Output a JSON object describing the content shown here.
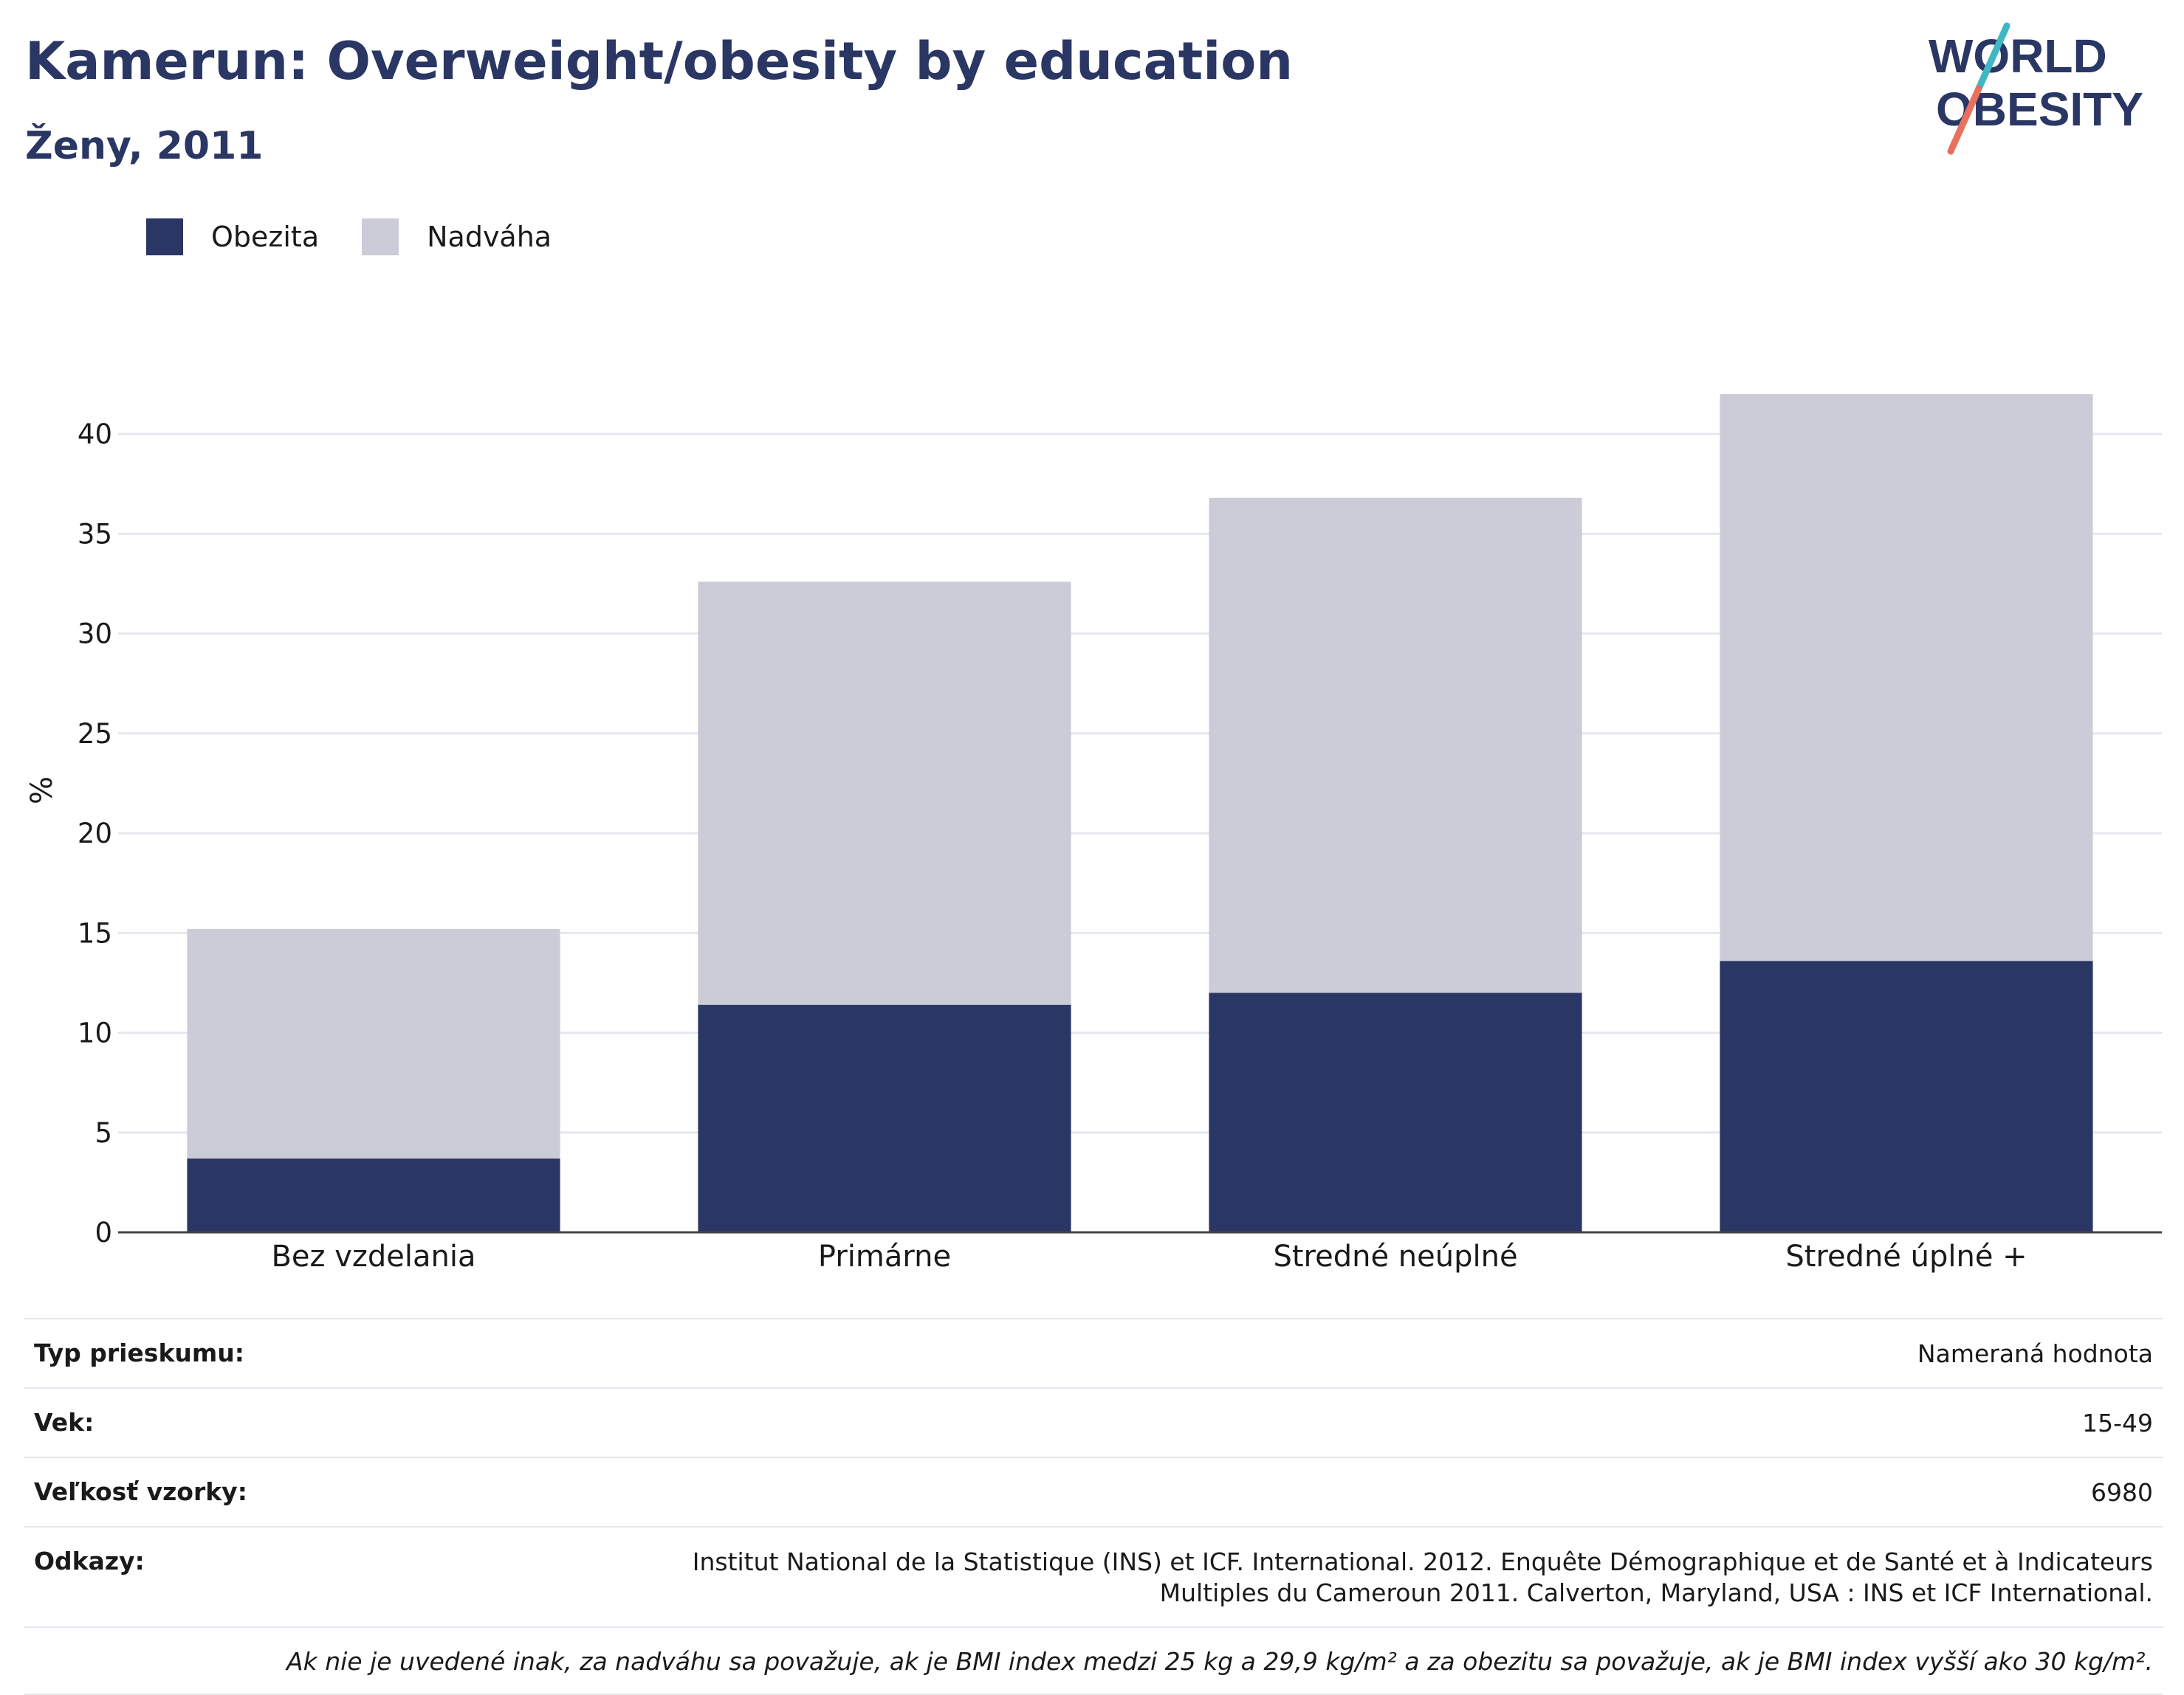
{
  "header": {
    "title": "Kamerun: Overweight/obesity by education",
    "subtitle": "Ženy, 2011"
  },
  "logo": {
    "line1": "WORLD",
    "line2": "OBESITY",
    "slash_colors": [
      "#3fb8c4",
      "#e8705f"
    ]
  },
  "legend": [
    {
      "label": "Obezita",
      "color": "#2a3663"
    },
    {
      "label": "Nadváha",
      "color": "#cbccd8"
    }
  ],
  "chart_data": {
    "type": "bar",
    "stacked": true,
    "categories": [
      "Bez vzdelania",
      "Primárne",
      "Stredné neúplné",
      "Stredné úplné +"
    ],
    "series": [
      {
        "name": "Obezita",
        "color": "#2a3663",
        "values": [
          3.7,
          11.4,
          12.0,
          13.6
        ]
      },
      {
        "name": "Nadváha",
        "color": "#cbccd8",
        "values": [
          11.5,
          21.2,
          24.8,
          28.4
        ]
      }
    ],
    "ylabel": "%",
    "ylim": [
      0,
      44
    ],
    "yticks": [
      0,
      5,
      10,
      15,
      20,
      25,
      30,
      35,
      40
    ],
    "grid": true
  },
  "info": {
    "survey_type_label": "Typ prieskumu:",
    "survey_type_value": "Nameraná hodnota",
    "age_label": "Vek:",
    "age_value": "15-49",
    "sample_label": "Veľkosť vzorky:",
    "sample_value": "6980",
    "refs_label": "Odkazy:",
    "refs_value": "Institut National de la Statistique (INS) et ICF. International. 2012. Enquête Démographique et de Santé et à Indicateurs Multiples du Cameroun 2011. Calverton, Maryland, USA : INS et ICF International.",
    "note": "Ak nie je uvedené inak, za nadváhu sa považuje, ak je BMI index medzi 25 kg a 29,9 kg/m² a za obezitu sa považuje, ak je BMI index vyšší ako 30 kg/m²."
  }
}
